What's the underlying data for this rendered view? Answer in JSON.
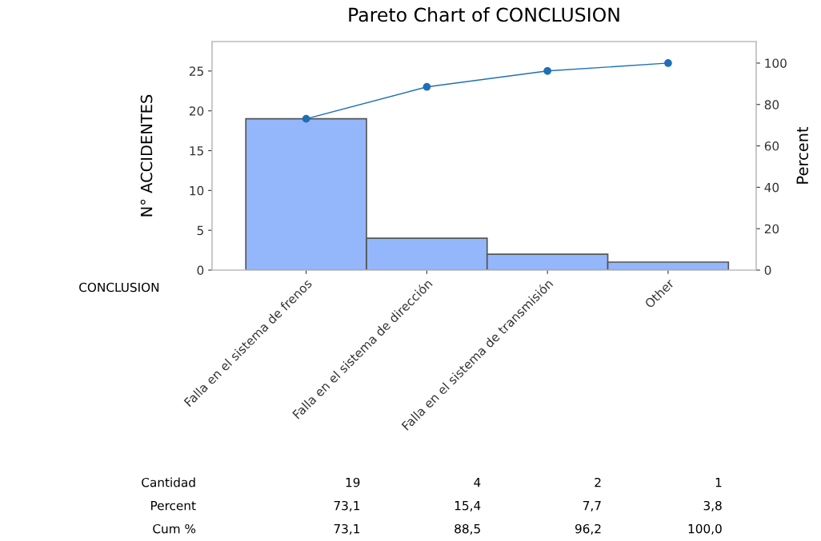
{
  "chart_data": {
    "type": "bar",
    "title": "Pareto Chart of CONCLUSION",
    "xlabel": "CONCLUSION",
    "ylabel": "N° ACCIDENTES",
    "y2label": "Percent",
    "categories": [
      "Falla en el sistema de frenos",
      "Falla en el sistema de dirección",
      "Falla en el sistema de transmisión",
      "Other"
    ],
    "series": [
      {
        "color": "#94b6fa",
        "values": [
          19,
          4,
          2,
          1
        ],
        "value_labels": [
          "19",
          "4",
          "2",
          "1"
        ]
      },
      {
        "type": "line",
        "axis": "y2",
        "color": "#1f6fb8",
        "marker": "circle",
        "values": [
          73.1,
          88.5,
          96.2,
          100.0
        ],
        "value_labels": [
          "73,1",
          "88,5",
          "96,2",
          "100,0"
        ]
      }
    ],
    "annotations": [
      "Cantidad",
      "Percent",
      "Cum %",
      "73,1",
      "15,4",
      "7,7",
      "3,8"
    ],
    "ylim": [
      0,
      28.7
    ],
    "yticks": [
      0,
      5,
      10,
      15,
      20,
      25
    ],
    "y2lim": [
      0,
      110.4
    ],
    "y2ticks": [
      0,
      20,
      40,
      60,
      80,
      100
    ],
    "grid": false,
    "legend": false
  }
}
